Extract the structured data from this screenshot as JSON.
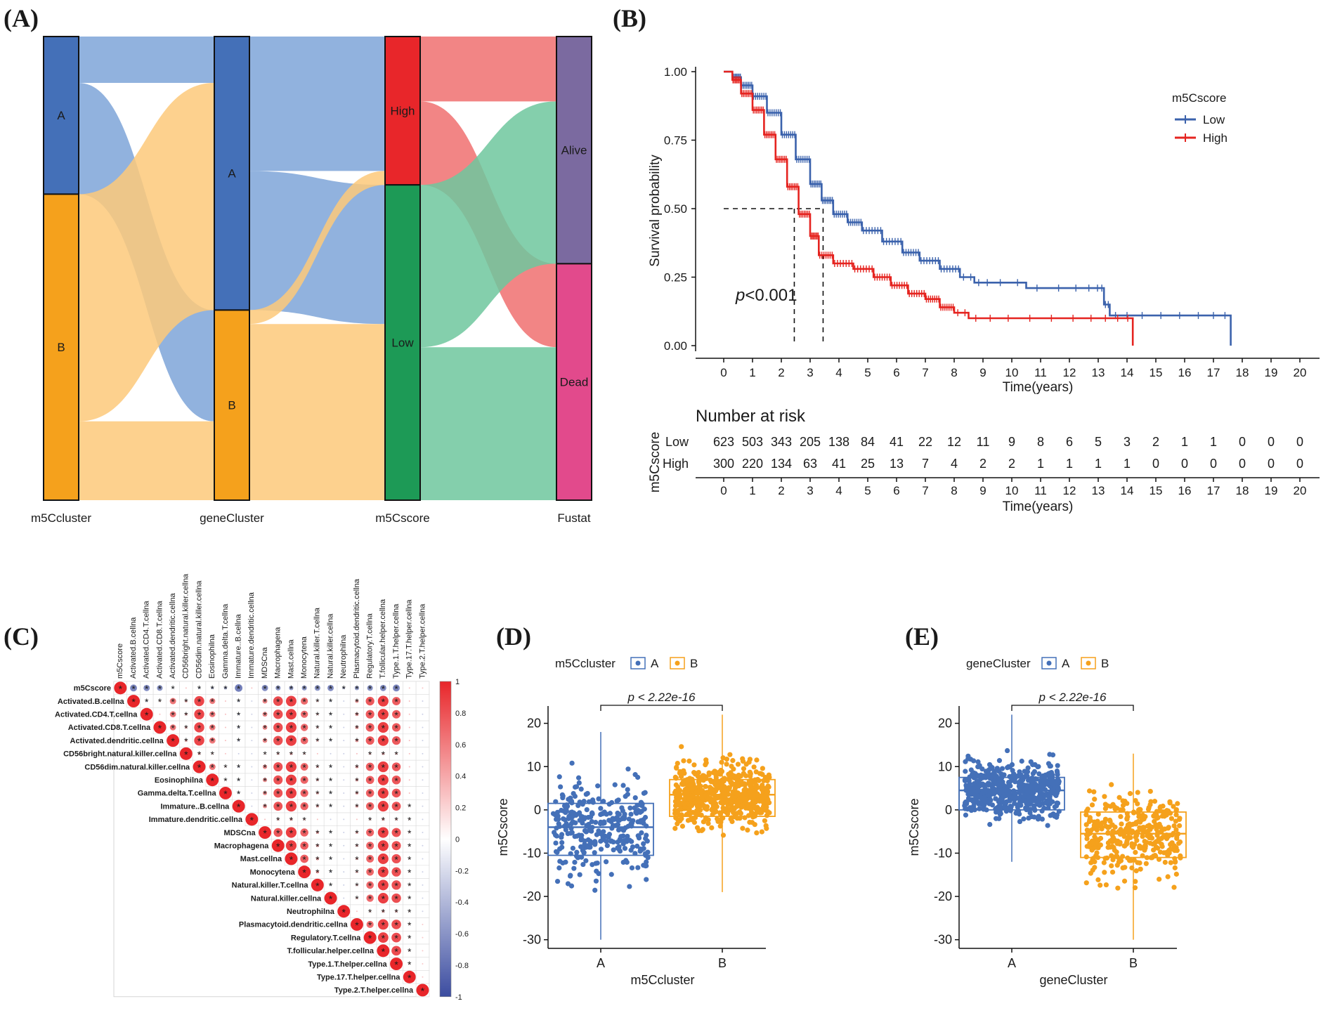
{
  "colors": {
    "clusterA": "#4470b8",
    "clusterB": "#f5a11c",
    "high": "#e8262a",
    "low": "#1d9a56",
    "alive": "#7b6aa0",
    "dead": "#e24a8c",
    "flowA": "#7ea5d8",
    "flowB": "#fdc97a",
    "flowHigh": "#f07070",
    "flowLow": "#6fc79d",
    "survLow": "#3b62ac",
    "survHigh": "#e52420",
    "corrPos": "#e8262a",
    "corrNeg": "#3b4ca0"
  },
  "chart_data": [
    {
      "panel": "(A)",
      "type": "sankey",
      "axes": [
        "m5Ccluster",
        "geneCluster",
        "m5Cscore",
        "Fustat"
      ],
      "nodes": {
        "m5Ccluster": [
          {
            "label": "A",
            "value": 34
          },
          {
            "label": "B",
            "value": 66
          }
        ],
        "geneCluster": [
          {
            "label": "A",
            "value": 59
          },
          {
            "label": "B",
            "value": 41
          }
        ],
        "m5Cscore": [
          {
            "label": "High",
            "value": 32
          },
          {
            "label": "Low",
            "value": 68
          }
        ],
        "Fustat": [
          {
            "label": "Alive",
            "value": 49
          },
          {
            "label": "Dead",
            "value": 51
          }
        ]
      },
      "flows": [
        {
          "from": "A",
          "to": "A",
          "value": 10,
          "group": "A"
        },
        {
          "from": "A",
          "to": "B",
          "value": 24,
          "group": "A"
        },
        {
          "from": "B",
          "to": "A",
          "value": 49,
          "group": "B"
        },
        {
          "from": "B",
          "to": "B",
          "value": 17,
          "group": "B"
        },
        {
          "from": "High",
          "to": "Alive",
          "value": 14,
          "group": "High"
        },
        {
          "from": "High",
          "to": "Dead",
          "value": 18,
          "group": "High"
        },
        {
          "from": "Low",
          "to": "Alive",
          "value": 35,
          "group": "Low"
        },
        {
          "from": "Low",
          "to": "Dead",
          "value": 33,
          "group": "Low"
        }
      ],
      "middle_flows": [
        {
          "from": "A",
          "to": "High",
          "value": 29,
          "group": "A"
        },
        {
          "from": "A",
          "to": "Low",
          "value": 30,
          "group": "A"
        },
        {
          "from": "B",
          "to": "High",
          "value": 3,
          "group": "B"
        },
        {
          "from": "B",
          "to": "Low",
          "value": 38,
          "group": "B"
        }
      ]
    },
    {
      "panel": "(B)",
      "type": "line",
      "subtype": "kaplan-meier",
      "xlabel": "Time(years)",
      "ylabel": "Survival probability",
      "xlim": [
        0,
        20
      ],
      "ylim": [
        0,
        1
      ],
      "xticks": [
        0,
        1,
        2,
        3,
        4,
        5,
        6,
        7,
        8,
        9,
        10,
        11,
        12,
        13,
        14,
        15,
        16,
        17,
        18,
        19,
        20
      ],
      "yticks": [
        "0.00",
        "0.25",
        "0.50",
        "0.75",
        "1.00"
      ],
      "legend_title": "m5Cscore",
      "pvalue_prefix": "p",
      "pvalue_suffix": "<0.001",
      "median_line": 0.5,
      "series": [
        {
          "name": "Low",
          "color_key": "survLow",
          "x": [
            0,
            0.3,
            0.6,
            1.0,
            1.5,
            2.0,
            2.5,
            3.0,
            3.4,
            3.8,
            4.3,
            4.8,
            5.5,
            6.2,
            6.8,
            7.5,
            8.2,
            8.7,
            9.3,
            10.5,
            12.0,
            12.9,
            13.2,
            13.4,
            14.2,
            15.5,
            16.8,
            17.6
          ],
          "y": [
            1.0,
            0.98,
            0.95,
            0.91,
            0.85,
            0.77,
            0.68,
            0.59,
            0.53,
            0.48,
            0.45,
            0.42,
            0.38,
            0.34,
            0.31,
            0.28,
            0.25,
            0.23,
            0.23,
            0.21,
            0.21,
            0.21,
            0.15,
            0.11,
            0.11,
            0.11,
            0.11,
            0.0
          ]
        },
        {
          "name": "High",
          "color_key": "survHigh",
          "x": [
            0,
            0.3,
            0.6,
            1.0,
            1.4,
            1.8,
            2.2,
            2.6,
            3.0,
            3.3,
            3.8,
            4.5,
            5.2,
            5.8,
            6.4,
            7.0,
            7.5,
            8.0,
            8.5,
            9.5,
            11.0,
            12.5,
            13.5,
            14.2
          ],
          "y": [
            1.0,
            0.97,
            0.92,
            0.86,
            0.77,
            0.68,
            0.58,
            0.48,
            0.4,
            0.33,
            0.3,
            0.28,
            0.25,
            0.22,
            0.19,
            0.17,
            0.14,
            0.12,
            0.1,
            0.1,
            0.1,
            0.1,
            0.1,
            0.0
          ]
        }
      ],
      "risk_table": {
        "title": "Number at risk",
        "ylabel": "m5Cscore",
        "xlabel": "Time(years)",
        "rows": [
          {
            "name": "Low",
            "color_key": "survLow",
            "counts": [
              "623",
              "503",
              "343",
              "205",
              "138",
              "84",
              "41",
              "22",
              "12",
              "11",
              "9",
              "8",
              "6",
              "5",
              "3",
              "2",
              "1",
              "1",
              "0",
              "0",
              "0"
            ]
          },
          {
            "name": "High",
            "color_key": "survHigh",
            "counts": [
              "300",
              "220",
              "134",
              "63",
              "41",
              "25",
              "13",
              "7",
              "4",
              "2",
              "2",
              "1",
              "1",
              "1",
              "1",
              "0",
              "0",
              "0",
              "0",
              "0",
              "0"
            ]
          }
        ]
      }
    },
    {
      "panel": "(C)",
      "type": "heatmap",
      "subtype": "correlation-triangle",
      "labels": [
        "m5Cscore",
        "Activated.B.cellna",
        "Activated.CD4.T.cellna",
        "Activated.CD8.T.cellna",
        "Activated.dendritic.cellna",
        "CD56bright.natural.killer.cellna",
        "CD56dim.natural.killer.cellna",
        "Eosinophilna",
        "Gamma.delta.T.cellna",
        "Immature..B.cellna",
        "Immature.dendritic.cellna",
        "MDSCna",
        "Macrophagena",
        "Mast.cellna",
        "Monocytena",
        "Natural.killer.T.cellna",
        "Natural.killer.cellna",
        "Neutrophilna",
        "Plasmacytoid.dendritic.cellna",
        "Regulatory.T.cellna",
        "T.follicular.helper.cellna",
        "Type.1.T.helper.cellna",
        "Type.17.T.helper.cellna",
        "Type.2.T.helper.cellna"
      ],
      "significance_mark": "*",
      "colorbar_ticks": [
        "1",
        "0.8",
        "0.6",
        "0.4",
        "0.2",
        "0",
        "-0.2",
        "-0.4",
        "-0.6",
        "-0.8",
        "-1"
      ],
      "m5Cscore_row": [
        1,
        -0.55,
        -0.5,
        -0.45,
        -0.1,
        0.05,
        -0.15,
        -0.2,
        -0.25,
        -0.6,
        0.05,
        -0.5,
        -0.4,
        -0.35,
        -0.4,
        -0.45,
        -0.5,
        -0.2,
        -0.35,
        -0.45,
        -0.5,
        -0.55,
        0.05,
        0.02
      ]
    },
    {
      "panel": "(D)",
      "type": "scatter",
      "subtype": "box-jitter",
      "legend_title": "m5Ccluster",
      "categories": [
        "A",
        "B"
      ],
      "xlabel": "m5Ccluster",
      "ylabel": "m5Cscore",
      "ylim": [
        -32,
        24
      ],
      "yticks": [
        -30,
        -20,
        -10,
        0,
        10,
        20
      ],
      "pvalue": "p < 2.22e-16",
      "boxes": [
        {
          "name": "A",
          "color_key": "clusterA",
          "q1": -10.5,
          "median": -4,
          "q3": 1.5,
          "lower": -30,
          "upper": 18,
          "n": 320
        },
        {
          "name": "B",
          "color_key": "clusterB",
          "q1": -1.5,
          "median": 3.5,
          "q3": 7,
          "lower": -19,
          "upper": 22,
          "n": 600
        }
      ]
    },
    {
      "panel": "(E)",
      "type": "scatter",
      "subtype": "box-jitter",
      "legend_title": "geneCluster",
      "categories": [
        "A",
        "B"
      ],
      "xlabel": "geneCluster",
      "ylabel": "m5Cscore",
      "ylim": [
        -32,
        24
      ],
      "yticks": [
        -30,
        -20,
        -10,
        0,
        10,
        20
      ],
      "pvalue": "p < 2.22e-16",
      "boxes": [
        {
          "name": "A",
          "color_key": "clusterA",
          "q1": 0,
          "median": 4.5,
          "q3": 7.5,
          "lower": -12,
          "upper": 22,
          "n": 560
        },
        {
          "name": "B",
          "color_key": "clusterB",
          "q1": -11,
          "median": -5.5,
          "q3": -0.5,
          "lower": -30,
          "upper": 13,
          "n": 360
        }
      ]
    }
  ]
}
